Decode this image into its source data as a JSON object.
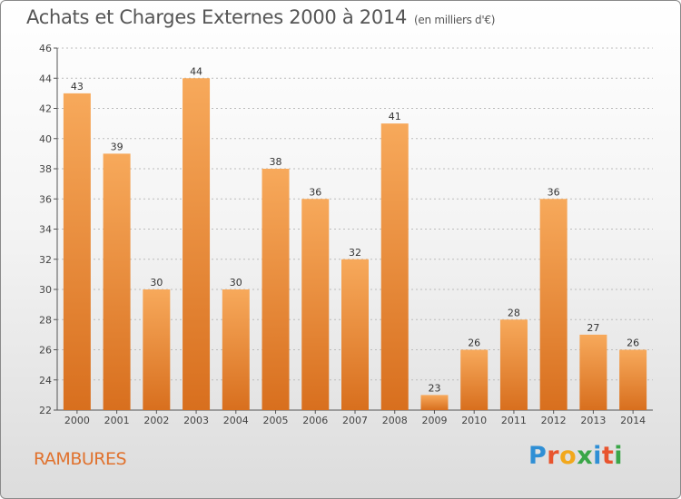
{
  "header": {
    "title": "Achats et Charges Externes 2000 à 2014",
    "subtitle": "(en milliers d'€)"
  },
  "footer": {
    "commune": "RAMBURES",
    "logo_letters": [
      {
        "ch": "P",
        "color": "#2f8fd5"
      },
      {
        "ch": "r",
        "color": "#e8542e"
      },
      {
        "ch": "o",
        "color": "#f2a81c"
      },
      {
        "ch": "x",
        "color": "#3aa648"
      },
      {
        "ch": "i",
        "color": "#2f8fd5"
      },
      {
        "ch": "t",
        "color": "#e8542e"
      },
      {
        "ch": "i",
        "color": "#3aa648"
      }
    ]
  },
  "colors": {
    "bar_top": "#f7a95b",
    "bar_bottom": "#d86f1e",
    "grid": "#bcbcbc",
    "axis": "#555555",
    "commune": "#e0722e"
  },
  "chart_data": {
    "type": "bar",
    "categories": [
      "2000",
      "2001",
      "2002",
      "2003",
      "2004",
      "2005",
      "2006",
      "2007",
      "2008",
      "2009",
      "2010",
      "2011",
      "2012",
      "2013",
      "2014"
    ],
    "values": [
      43,
      39,
      30,
      44,
      30,
      38,
      36,
      32,
      41,
      23,
      26,
      28,
      36,
      27,
      26
    ],
    "ylim": [
      22,
      46
    ],
    "yticks": [
      22,
      24,
      26,
      28,
      30,
      32,
      34,
      36,
      38,
      40,
      42,
      44,
      46
    ],
    "grid": true,
    "data_labels": true
  }
}
